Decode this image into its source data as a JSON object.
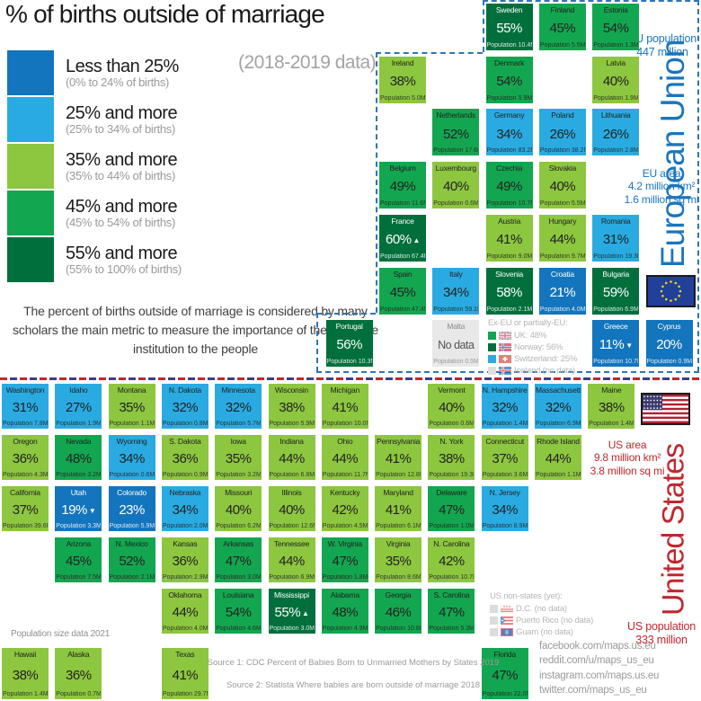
{
  "title": "% of births outside of marriage",
  "subtitle": "(2018-2019 data)",
  "description": "The percent of births outside of marriage is considered by many scholars the main metric to measure the importance of the marriage institution to the people",
  "palette": {
    "b1": "#1375bd",
    "b2": "#29abe2",
    "g1": "#8dc63f",
    "g2": "#13a650",
    "g3": "#006f3c",
    "nd": "#e8e8e8",
    "eu_accent": "#1b75bc",
    "us_accent": "#c1272d",
    "faded_swatch": "#dcdcdc"
  },
  "legend": [
    {
      "label": "Less than 25%",
      "range": "(0% to 24% of births)",
      "cls": "b1"
    },
    {
      "label": "25% and more",
      "range": "(25% to 34% of births)",
      "cls": "b2"
    },
    {
      "label": "35% and more",
      "range": "(35% to 44% of births)",
      "cls": "g1"
    },
    {
      "label": "45% and more",
      "range": "(45% to 54% of births)",
      "cls": "g2"
    },
    {
      "label": "55% and more",
      "range": "(55% to 100% of births)",
      "cls": "g3"
    }
  ],
  "eu": {
    "region_label": "European Union",
    "population_note": [
      "EU population",
      "447 million"
    ],
    "area_note": [
      "EU area",
      "4.2 million km²",
      "1.6 million sq mi"
    ],
    "tiles": [
      {
        "name": "Sweden",
        "value": "55%",
        "pop": "Population 10.4M",
        "cls": "g3",
        "col": 2,
        "row": 0
      },
      {
        "name": "Finland",
        "value": "45%",
        "pop": "Population 5.5M",
        "cls": "g2",
        "col": 3,
        "row": 0
      },
      {
        "name": "Estonia",
        "value": "54%",
        "pop": "Population 1.3M",
        "cls": "g2",
        "col": 4,
        "row": 0
      },
      {
        "name": "Ireland",
        "value": "38%",
        "pop": "Population 5.0M",
        "cls": "g1",
        "col": 0,
        "row": 1
      },
      {
        "name": "Denmark",
        "value": "54%",
        "pop": "Population 5.9M",
        "cls": "g2",
        "col": 2,
        "row": 1
      },
      {
        "name": "Latvia",
        "value": "40%",
        "pop": "Population 1.9M",
        "cls": "g1",
        "col": 4,
        "row": 1
      },
      {
        "name": "Netherlands",
        "value": "52%",
        "pop": "Population 17.6M",
        "cls": "g2",
        "col": 1,
        "row": 2
      },
      {
        "name": "Germany",
        "value": "34%",
        "pop": "Population 83.2M",
        "cls": "b2",
        "col": 2,
        "row": 2
      },
      {
        "name": "Poland",
        "value": "26%",
        "pop": "Population 38.2M",
        "cls": "b2",
        "col": 3,
        "row": 2
      },
      {
        "name": "Lithuania",
        "value": "26%",
        "pop": "Population 2.8M",
        "cls": "b2",
        "col": 4,
        "row": 2
      },
      {
        "name": "Belgium",
        "value": "49%",
        "pop": "Population 11.6M",
        "cls": "g2",
        "col": 0,
        "row": 3
      },
      {
        "name": "Luxembourg",
        "value": "40%",
        "pop": "Population 0.6M",
        "cls": "g1",
        "col": 1,
        "row": 3
      },
      {
        "name": "Czechia",
        "value": "49%",
        "pop": "Population 10.7M",
        "cls": "g2",
        "col": 2,
        "row": 3
      },
      {
        "name": "Slovakia",
        "value": "40%",
        "pop": "Population 5.5M",
        "cls": "g1",
        "col": 3,
        "row": 3
      },
      {
        "name": "France",
        "value": "60%",
        "arrow": "up",
        "pop": "Population 67.4M",
        "cls": "g3",
        "col": 0,
        "row": 4
      },
      {
        "name": "Austria",
        "value": "41%",
        "pop": "Population 9.0M",
        "cls": "g1",
        "col": 2,
        "row": 4
      },
      {
        "name": "Hungary",
        "value": "44%",
        "pop": "Population 9.7M",
        "cls": "g1",
        "col": 3,
        "row": 4
      },
      {
        "name": "Romania",
        "value": "31%",
        "pop": "Population 19.3M",
        "cls": "b2",
        "col": 4,
        "row": 4
      },
      {
        "name": "Spain",
        "value": "45%",
        "pop": "Population 47.4M",
        "cls": "g2",
        "col": 0,
        "row": 5
      },
      {
        "name": "Italy",
        "value": "34%",
        "pop": "Population 59.1M",
        "cls": "b2",
        "col": 1,
        "row": 5
      },
      {
        "name": "Slovenia",
        "value": "58%",
        "pop": "Population 2.1M",
        "cls": "g3",
        "col": 2,
        "row": 5
      },
      {
        "name": "Croatia",
        "value": "21%",
        "pop": "Population 4.0M",
        "cls": "b1",
        "col": 3,
        "row": 5
      },
      {
        "name": "Bulgaria",
        "value": "59%",
        "pop": "Population 6.9M",
        "cls": "g3",
        "col": 4,
        "row": 5
      },
      {
        "name": "Portugal",
        "value": "56%",
        "pop": "Population 10.3M",
        "cls": "g3",
        "col": -1,
        "row": 6
      },
      {
        "name": "Malta",
        "value": "No data",
        "pop": "Population 0.5M",
        "cls": "nd",
        "col": 1,
        "row": 6
      },
      {
        "name": "Greece",
        "value": "11%",
        "arrow": "down",
        "pop": "Population 10.7M",
        "cls": "b1",
        "col": 4,
        "row": 6
      },
      {
        "name": "Cyprus",
        "value": "20%",
        "pop": "Population 0.9M",
        "cls": "b1",
        "col": 5,
        "row": 6
      }
    ],
    "ex_eu": {
      "title": "Ex-EU or partially-EU:",
      "items": [
        {
          "label": "UK: 48%",
          "cls": "g2",
          "flag": "uk"
        },
        {
          "label": "Norway: 56%",
          "cls": "g3",
          "flag": "norway"
        },
        {
          "label": "Switzerland: 25%",
          "cls": "b2",
          "flag": "switzerland"
        },
        {
          "label": "Iceland (no data)",
          "cls": "nd",
          "flag": "iceland"
        }
      ]
    }
  },
  "us": {
    "region_label": "United States",
    "population_note": [
      "US population",
      "333 million"
    ],
    "area_note": [
      "US area",
      "9.8 million km²",
      "3.8 million sq mi"
    ],
    "pop_data_note": "Population size data 2021",
    "tiles": [
      {
        "name": "Washington",
        "value": "31%",
        "pop": "Population 7.8M",
        "cls": "b2",
        "col": 0,
        "row": 0
      },
      {
        "name": "Idaho",
        "value": "27%",
        "pop": "Population 1.9M",
        "cls": "b2",
        "col": 1,
        "row": 0
      },
      {
        "name": "Montana",
        "value": "35%",
        "pop": "Population 1.1M",
        "cls": "g1",
        "col": 2,
        "row": 0
      },
      {
        "name": "N. Dakota",
        "value": "32%",
        "pop": "Population 0.8M",
        "cls": "b2",
        "col": 3,
        "row": 0
      },
      {
        "name": "Minnesota",
        "value": "32%",
        "pop": "Population 5.7M",
        "cls": "b2",
        "col": 4,
        "row": 0
      },
      {
        "name": "Wisconsin",
        "value": "38%",
        "pop": "Population 5.9M",
        "cls": "g1",
        "col": 5,
        "row": 0
      },
      {
        "name": "Michigan",
        "value": "41%",
        "pop": "Population 10.0M",
        "cls": "g1",
        "col": 6,
        "row": 0
      },
      {
        "name": "Vermont",
        "value": "40%",
        "pop": "Population 0.6M",
        "cls": "g1",
        "col": 8,
        "row": 0
      },
      {
        "name": "N. Hampshire",
        "value": "32%",
        "pop": "Population 1.4M",
        "cls": "b2",
        "col": 9,
        "row": 0
      },
      {
        "name": "Massachusetts",
        "value": "32%",
        "pop": "Population 6.9M",
        "cls": "b2",
        "col": 10,
        "row": 0
      },
      {
        "name": "Maine",
        "value": "38%",
        "pop": "Population 1.4M",
        "cls": "g1",
        "col": 11,
        "row": 0
      },
      {
        "name": "Oregon",
        "value": "36%",
        "pop": "Population 4.3M",
        "cls": "g1",
        "col": 0,
        "row": 1
      },
      {
        "name": "Nevada",
        "value": "48%",
        "pop": "Population 3.2M",
        "cls": "g2",
        "col": 1,
        "row": 1
      },
      {
        "name": "Wyoming",
        "value": "34%",
        "pop": "Population 0.6M",
        "cls": "b2",
        "col": 2,
        "row": 1
      },
      {
        "name": "S. Dakota",
        "value": "36%",
        "pop": "Population 0.9M",
        "cls": "g1",
        "col": 3,
        "row": 1
      },
      {
        "name": "Iowa",
        "value": "35%",
        "pop": "Population 3.2M",
        "cls": "g1",
        "col": 4,
        "row": 1
      },
      {
        "name": "Indiana",
        "value": "44%",
        "pop": "Population 6.8M",
        "cls": "g1",
        "col": 5,
        "row": 1
      },
      {
        "name": "Ohio",
        "value": "44%",
        "pop": "Population 11.7M",
        "cls": "g1",
        "col": 6,
        "row": 1
      },
      {
        "name": "Pennsylvania",
        "value": "41%",
        "pop": "Population 12.8M",
        "cls": "g1",
        "col": 7,
        "row": 1
      },
      {
        "name": "N. York",
        "value": "38%",
        "pop": "Population 19.3M",
        "cls": "g1",
        "col": 8,
        "row": 1
      },
      {
        "name": "Connecticut",
        "value": "37%",
        "pop": "Population 3.6M",
        "cls": "g1",
        "col": 9,
        "row": 1
      },
      {
        "name": "Rhode Island",
        "value": "44%",
        "pop": "Population 1.1M",
        "cls": "g1",
        "col": 10,
        "row": 1
      },
      {
        "name": "California",
        "value": "37%",
        "pop": "Population 39.6M",
        "cls": "g1",
        "col": 0,
        "row": 2
      },
      {
        "name": "Utah",
        "value": "19%",
        "arrow": "down",
        "pop": "Population 3.3M",
        "cls": "b1",
        "col": 1,
        "row": 2
      },
      {
        "name": "Colorado",
        "value": "23%",
        "pop": "Population 5.9M",
        "cls": "b1",
        "col": 2,
        "row": 2
      },
      {
        "name": "Nebraska",
        "value": "34%",
        "pop": "Population 2.0M",
        "cls": "b2",
        "col": 3,
        "row": 2
      },
      {
        "name": "Missouri",
        "value": "40%",
        "pop": "Population 6.2M",
        "cls": "g1",
        "col": 4,
        "row": 2
      },
      {
        "name": "Illinois",
        "value": "40%",
        "pop": "Population 12.6M",
        "cls": "g1",
        "col": 5,
        "row": 2
      },
      {
        "name": "Kentucky",
        "value": "42%",
        "pop": "Population 4.5M",
        "cls": "g1",
        "col": 6,
        "row": 2
      },
      {
        "name": "Maryland",
        "value": "41%",
        "pop": "Population 6.1M",
        "cls": "g1",
        "col": 7,
        "row": 2
      },
      {
        "name": "Delaware",
        "value": "47%",
        "pop": "Population 1.0M",
        "cls": "g2",
        "col": 8,
        "row": 2
      },
      {
        "name": "N. Jersey",
        "value": "34%",
        "pop": "Population 8.9M",
        "cls": "b2",
        "col": 9,
        "row": 2
      },
      {
        "name": "Arizona",
        "value": "45%",
        "pop": "Population 7.5M",
        "cls": "g2",
        "col": 1,
        "row": 3
      },
      {
        "name": "N. Mexico",
        "value": "52%",
        "pop": "Population 2.1M",
        "cls": "g2",
        "col": 2,
        "row": 3
      },
      {
        "name": "Kansas",
        "value": "36%",
        "pop": "Population 2.9M",
        "cls": "g1",
        "col": 3,
        "row": 3
      },
      {
        "name": "Arkansas",
        "value": "47%",
        "pop": "Population 3.0M",
        "cls": "g2",
        "col": 4,
        "row": 3
      },
      {
        "name": "Tennessee",
        "value": "44%",
        "pop": "Population 6.9M",
        "cls": "g1",
        "col": 5,
        "row": 3
      },
      {
        "name": "W. Virginia",
        "value": "47%",
        "pop": "Population 1.8M",
        "cls": "g2",
        "col": 6,
        "row": 3
      },
      {
        "name": "Virginia",
        "value": "35%",
        "pop": "Population 8.6M",
        "cls": "g1",
        "col": 7,
        "row": 3
      },
      {
        "name": "N. Carolina",
        "value": "42%",
        "pop": "Population 10.7M",
        "cls": "g1",
        "col": 8,
        "row": 3
      },
      {
        "name": "Oklahoma",
        "value": "44%",
        "pop": "Population 4.0M",
        "cls": "g1",
        "col": 3,
        "row": 4
      },
      {
        "name": "Louisiana",
        "value": "54%",
        "pop": "Population 4.6M",
        "cls": "g2",
        "col": 4,
        "row": 4
      },
      {
        "name": "Mississippi",
        "value": "55%",
        "arrow": "up",
        "pop": "Population 3.0M",
        "cls": "g3",
        "col": 5,
        "row": 4
      },
      {
        "name": "Alabama",
        "value": "48%",
        "pop": "Population 4.9M",
        "cls": "g2",
        "col": 6,
        "row": 4
      },
      {
        "name": "Georgia",
        "value": "46%",
        "pop": "Population 10.8M",
        "cls": "g2",
        "col": 7,
        "row": 4
      },
      {
        "name": "S. Carolina",
        "value": "47%",
        "pop": "Population 5.3M",
        "cls": "g2",
        "col": 8,
        "row": 4
      },
      {
        "name": "Hawaii",
        "value": "38%",
        "pop": "Population 1.4M",
        "cls": "g1",
        "col": 0,
        "row": 5
      },
      {
        "name": "Alaska",
        "value": "36%",
        "pop": "Population 0.7M",
        "cls": "g1",
        "col": 1,
        "row": 5
      },
      {
        "name": "Texas",
        "value": "41%",
        "pop": "Population 29.7M",
        "cls": "g1",
        "col": 3,
        "row": 5
      },
      {
        "name": "Florida",
        "value": "47%",
        "pop": "Population 22.0M",
        "cls": "g2",
        "col": 9,
        "row": 5
      }
    ],
    "non_states": {
      "title": "US non-states (yet):",
      "items": [
        {
          "label": "D.C. (no data)",
          "cls": "faded",
          "flag": "dc"
        },
        {
          "label": "Puerto Rico (no data)",
          "cls": "faded",
          "flag": "puerto-rico"
        },
        {
          "label": "Guam (no data)",
          "cls": "faded",
          "flag": "guam"
        }
      ]
    }
  },
  "footer": {
    "sources": [
      "Source 1: CDC Percent of Babies Born to Unmarried Mothers by States 2019",
      "Source 2: Statista Where babies are born outside of marriage 2018"
    ],
    "links": [
      "facebook.com/maps.us.eu",
      "reddit.com/u/maps_us_eu",
      "instagram.com/maps.us.eu",
      "twitter.com/maps_us_eu"
    ]
  }
}
